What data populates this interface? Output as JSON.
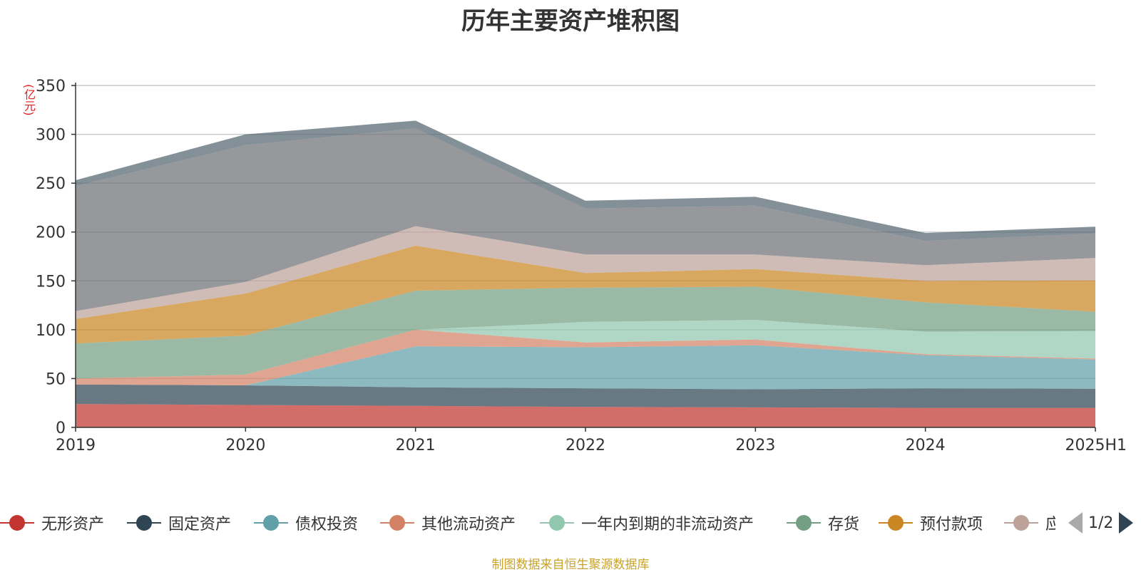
{
  "title": "历年主要资产堆积图",
  "unit_label": "(亿元)",
  "source": "制图数据来自恒生聚源数据库",
  "legend": {
    "items": [
      {
        "name": "无形资产",
        "color": "#c23531"
      },
      {
        "name": "固定资产",
        "color": "#2f4554"
      },
      {
        "name": "债权投资",
        "color": "#61a0a8"
      },
      {
        "name": "其他流动资产",
        "color": "#d48265"
      },
      {
        "name": "一年内到期的非流动资产",
        "color": "#91c7ae"
      },
      {
        "name": "存货",
        "color": "#749f83"
      },
      {
        "name": "预付款项",
        "color": "#ca8622"
      },
      {
        "name": "应",
        "color": "#bda29a"
      }
    ],
    "pager": "1/2"
  },
  "chart_data": {
    "type": "area",
    "stacked": true,
    "categories": [
      "2019",
      "2020",
      "2021",
      "2022",
      "2023",
      "2024",
      "2025H1"
    ],
    "ylim": [
      0,
      350
    ],
    "yticks": [
      0,
      50,
      100,
      150,
      200,
      250,
      300,
      350
    ],
    "grid": true,
    "legend_position": "bottom",
    "series": [
      {
        "name": "无形资产",
        "color": "#c23531",
        "values": [
          24,
          23,
          22,
          21,
          20.5,
          20,
          20
        ]
      },
      {
        "name": "固定资产",
        "color": "#2f4554",
        "values": [
          20,
          20,
          19,
          19,
          18.5,
          20,
          19.5
        ]
      },
      {
        "name": "债权投资",
        "color": "#61a0a8",
        "values": [
          0,
          0,
          42,
          42,
          45,
          34,
          30
        ]
      },
      {
        "name": "其他流动资产",
        "color": "#d48265",
        "values": [
          6,
          11,
          17,
          5,
          6,
          1,
          1
        ]
      },
      {
        "name": "一年内到期的非流动资产",
        "color": "#91c7ae",
        "values": [
          0,
          0,
          0,
          21,
          20,
          23,
          28
        ]
      },
      {
        "name": "存货",
        "color": "#749f83",
        "values": [
          36,
          40,
          40,
          35,
          34,
          30,
          20
        ]
      },
      {
        "name": "预付款项",
        "color": "#ca8622",
        "values": [
          25,
          43,
          46,
          15,
          18,
          22,
          32
        ]
      },
      {
        "name": "应",
        "color": "#bda29a",
        "values": [
          8,
          12,
          20,
          19,
          15,
          16,
          23
        ]
      },
      {
        "name": "",
        "color": "#6e7074",
        "values": [
          128,
          140,
          100,
          47,
          50,
          25,
          25
        ]
      },
      {
        "name": "",
        "color": "#546570",
        "values": [
          6,
          11,
          8,
          8,
          9,
          8,
          7
        ]
      }
    ]
  }
}
